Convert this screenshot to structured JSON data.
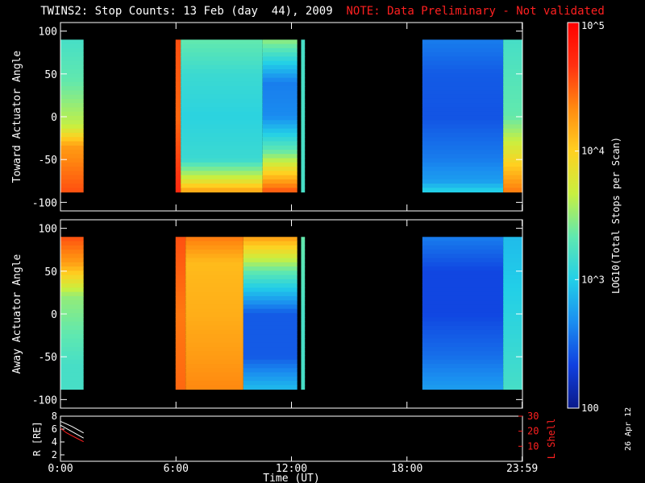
{
  "header": {
    "title": "TWINS2: Stop Counts: 13 Feb (day  44), 2009",
    "note": "NOTE: Data Preliminary - Not validated"
  },
  "footer": {
    "datestamp": "26 Apr 12"
  },
  "colors": {
    "note": "#ff2020",
    "gap": "#000000",
    "frame": "#ffffff",
    "lshell": "#ff2020"
  },
  "colorbar": {
    "label": "LOG10(Total Stops per Scan)",
    "tick_labels": [
      "100",
      "10^3",
      "10^4",
      "10^5"
    ],
    "range": [
      100,
      100000
    ],
    "scale": "log",
    "palette": [
      "#0a1a8a",
      "#1040e0",
      "#1a8df0",
      "#22cfe8",
      "#5fe8b0",
      "#c8f040",
      "#ffd020",
      "#ff8a10",
      "#ff3010",
      "#ff0000"
    ]
  },
  "chart_data": [
    {
      "type": "heatmap",
      "panel": "toward",
      "ylabel": "Toward Actuator Angle",
      "ylim": [
        -110,
        110
      ],
      "yticks": [
        100,
        50,
        0,
        -50,
        -100
      ],
      "xlim": [
        0,
        24
      ],
      "data_y_range": [
        -88,
        90
      ],
      "segments": [
        {
          "start": 0.0,
          "end": 1.2,
          "profile": [
            [
              90,
              0.4
            ],
            [
              40,
              0.45
            ],
            [
              -10,
              0.55
            ],
            [
              -35,
              0.75
            ],
            [
              -60,
              0.8
            ],
            [
              -88,
              0.85
            ]
          ]
        },
        {
          "start": 5.98,
          "end": 6.25,
          "profile": [
            [
              90,
              0.85
            ],
            [
              0,
              0.82
            ],
            [
              -88,
              0.9
            ]
          ]
        },
        {
          "start": 6.25,
          "end": 10.5,
          "profile": [
            [
              90,
              0.45
            ],
            [
              50,
              0.38
            ],
            [
              0,
              0.35
            ],
            [
              -50,
              0.38
            ],
            [
              -70,
              0.55
            ],
            [
              -88,
              0.75
            ]
          ]
        },
        {
          "start": 10.5,
          "end": 12.3,
          "profile": [
            [
              90,
              0.5
            ],
            [
              40,
              0.2
            ],
            [
              0,
              0.22
            ],
            [
              -40,
              0.45
            ],
            [
              -70,
              0.7
            ],
            [
              -88,
              0.85
            ]
          ]
        },
        {
          "start": 12.5,
          "end": 12.7,
          "profile": [
            [
              90,
              0.4
            ],
            [
              0,
              0.4
            ],
            [
              -88,
              0.4
            ]
          ]
        },
        {
          "start": 18.8,
          "end": 23.0,
          "profile": [
            [
              90,
              0.2
            ],
            [
              50,
              0.15
            ],
            [
              0,
              0.14
            ],
            [
              -50,
              0.2
            ],
            [
              -75,
              0.25
            ],
            [
              -88,
              0.35
            ]
          ]
        },
        {
          "start": 23.0,
          "end": 23.99,
          "profile": [
            [
              90,
              0.4
            ],
            [
              0,
              0.45
            ],
            [
              -40,
              0.6
            ],
            [
              -88,
              0.8
            ]
          ]
        }
      ]
    },
    {
      "type": "heatmap",
      "panel": "away",
      "ylabel": "Away Actuator Angle",
      "ylim": [
        -110,
        110
      ],
      "yticks": [
        100,
        50,
        0,
        -50,
        -100
      ],
      "xlim": [
        0,
        24
      ],
      "data_y_range": [
        -88,
        90
      ],
      "segments": [
        {
          "start": 0.0,
          "end": 1.2,
          "profile": [
            [
              90,
              0.85
            ],
            [
              60,
              0.75
            ],
            [
              20,
              0.5
            ],
            [
              -20,
              0.45
            ],
            [
              -60,
              0.4
            ],
            [
              -88,
              0.4
            ]
          ]
        },
        {
          "start": 5.98,
          "end": 6.5,
          "profile": [
            [
              90,
              0.85
            ],
            [
              0,
              0.8
            ],
            [
              -88,
              0.82
            ]
          ]
        },
        {
          "start": 6.5,
          "end": 9.5,
          "profile": [
            [
              90,
              0.8
            ],
            [
              60,
              0.7
            ],
            [
              0,
              0.72
            ],
            [
              -50,
              0.75
            ],
            [
              -88,
              0.78
            ]
          ]
        },
        {
          "start": 9.5,
          "end": 12.3,
          "profile": [
            [
              90,
              0.75
            ],
            [
              50,
              0.45
            ],
            [
              0,
              0.15
            ],
            [
              -50,
              0.15
            ],
            [
              -88,
              0.3
            ]
          ]
        },
        {
          "start": 12.5,
          "end": 12.7,
          "profile": [
            [
              90,
              0.45
            ],
            [
              0,
              0.4
            ],
            [
              -88,
              0.4
            ]
          ]
        },
        {
          "start": 18.8,
          "end": 23.0,
          "profile": [
            [
              90,
              0.2
            ],
            [
              50,
              0.12
            ],
            [
              0,
              0.12
            ],
            [
              -50,
              0.18
            ],
            [
              -88,
              0.25
            ]
          ]
        },
        {
          "start": 23.0,
          "end": 23.99,
          "profile": [
            [
              90,
              0.3
            ],
            [
              0,
              0.35
            ],
            [
              -88,
              0.4
            ]
          ]
        }
      ]
    },
    {
      "type": "line",
      "panel": "orbit",
      "ylabel": "R [RE]",
      "ylim": [
        1,
        8
      ],
      "yticks": [
        2,
        4,
        6,
        8
      ],
      "right_axis": {
        "label": "L Shell",
        "ylim": [
          0,
          30
        ],
        "yticks": [
          10,
          20,
          30
        ]
      },
      "xlabel": "Time (UT)",
      "xlim": [
        0,
        24
      ],
      "xtick_values": [
        0,
        6,
        12,
        18,
        23.983
      ],
      "xtick_labels": [
        "0:00",
        "6:00",
        "12:00",
        "18:00",
        "23:59"
      ],
      "series": [
        {
          "axis": "left",
          "x": [
            0.0,
            0.3,
            0.6,
            0.9,
            1.2
          ],
          "values": [
            7.2,
            6.8,
            6.4,
            5.9,
            5.4
          ]
        },
        {
          "axis": "right",
          "x": [
            0.0,
            0.3,
            0.6,
            0.9,
            1.2
          ],
          "values": [
            22,
            19,
            17,
            15,
            13
          ]
        },
        {
          "axis": "left",
          "x": [
            0.0,
            0.3,
            0.6,
            0.9,
            1.2
          ],
          "values": [
            6.6,
            6.1,
            5.6,
            5.1,
            4.6
          ]
        }
      ]
    }
  ]
}
